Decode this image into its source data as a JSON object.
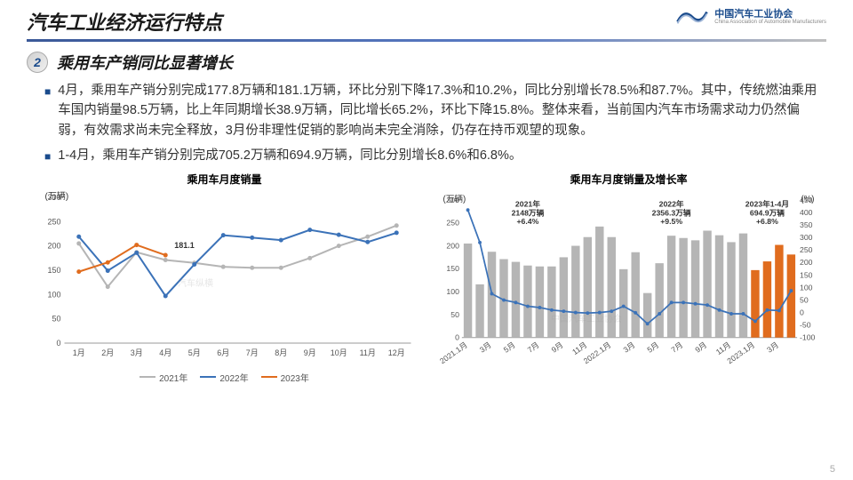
{
  "header": {
    "title": "汽车工业经济运行特点",
    "logo_text": "中国汽车工业协会",
    "logo_sub": "China Association of Automobile Manufacturers"
  },
  "section": {
    "number": "2",
    "subtitle": "乘用车产销同比显著增长"
  },
  "bullets": [
    "4月，乘用车产销分别完成177.8万辆和181.1万辆，环比分别下降17.3%和10.2%，同比分别增长78.5%和87.7%。其中，传统燃油乘用车国内销量98.5万辆，比上年同期增长38.9万辆，同比增长65.2%，环比下降15.8%。整体来看，当前国内汽车市场需求动力仍然偏弱，有效需求尚未完全释放，3月份非理性促销的影响尚未完全消除，仍存在持币观望的现象。",
    "1-4月，乘用车产销分别完成705.2万辆和694.9万辆，同比分别增长8.6%和6.8%。"
  ],
  "chart1": {
    "title": "乘用车月度销量",
    "ylabel": "(万辆)",
    "xcats": [
      "1月",
      "2月",
      "3月",
      "4月",
      "5月",
      "6月",
      "7月",
      "8月",
      "9月",
      "10月",
      "11月",
      "12月"
    ],
    "ylim": [
      0,
      300
    ],
    "ytick_step": 50,
    "series": [
      {
        "name": "2021年",
        "color": "#b5b5b5",
        "values": [
          205,
          116,
          187,
          171,
          165,
          157,
          155,
          155,
          175,
          200,
          219,
          242
        ]
      },
      {
        "name": "2022年",
        "color": "#3b72b8",
        "values": [
          219,
          149,
          186,
          97,
          162,
          222,
          217,
          212,
          233,
          223,
          208,
          227
        ]
      },
      {
        "name": "2023年",
        "color": "#e06c1e",
        "values": [
          147,
          166,
          202,
          181
        ]
      }
    ],
    "annotation": {
      "label": "181.1",
      "x_index": 3,
      "y": 181,
      "color": "#e06c1e"
    }
  },
  "chart2": {
    "title": "乘用车月度销量及增长率",
    "ylabel_left": "(万辆)",
    "ylabel_right": "(%)",
    "ylim_left": [
      0,
      300
    ],
    "ytick_left": 50,
    "ylim_right": [
      -100,
      450
    ],
    "yticks_right": [
      -100,
      -50,
      0,
      50,
      100,
      150,
      200,
      250,
      300,
      350,
      400,
      450
    ],
    "xcats": [
      "2021.1月",
      "3月",
      "5月",
      "7月",
      "9月",
      "11月",
      "2022.1月",
      "3月",
      "5月",
      "7月",
      "9月",
      "11月",
      "2023.1月",
      "3月"
    ],
    "bars": {
      "color": "#b5b5b5",
      "values": [
        205,
        116,
        187,
        171,
        165,
        157,
        155,
        155,
        175,
        200,
        219,
        242,
        219,
        149,
        186,
        97,
        162,
        222,
        217,
        212,
        233,
        223,
        208,
        227,
        147,
        166,
        202,
        181
      ]
    },
    "bars_highlight": {
      "color": "#e06c1e",
      "start_index": 24,
      "values": [
        147,
        166,
        202,
        181
      ]
    },
    "line": {
      "color": "#3b72b8",
      "values": [
        410,
        280,
        75,
        50,
        40,
        25,
        20,
        10,
        5,
        0,
        -2,
        0,
        5,
        25,
        -1,
        -45,
        -5,
        40,
        40,
        35,
        30,
        10,
        -5,
        -5,
        -35,
        10,
        8,
        87
      ]
    },
    "annotations": [
      {
        "lines": [
          "2021年",
          "2148万辆",
          "+6.4%"
        ],
        "x_index": 5
      },
      {
        "lines": [
          "2022年",
          "2356.3万辆",
          "+9.5%"
        ],
        "x_index": 17
      },
      {
        "lines": [
          "2023年1-4月",
          "694.9万辆",
          "+6.8%"
        ],
        "x_index": 25
      }
    ]
  },
  "page_number": "5"
}
